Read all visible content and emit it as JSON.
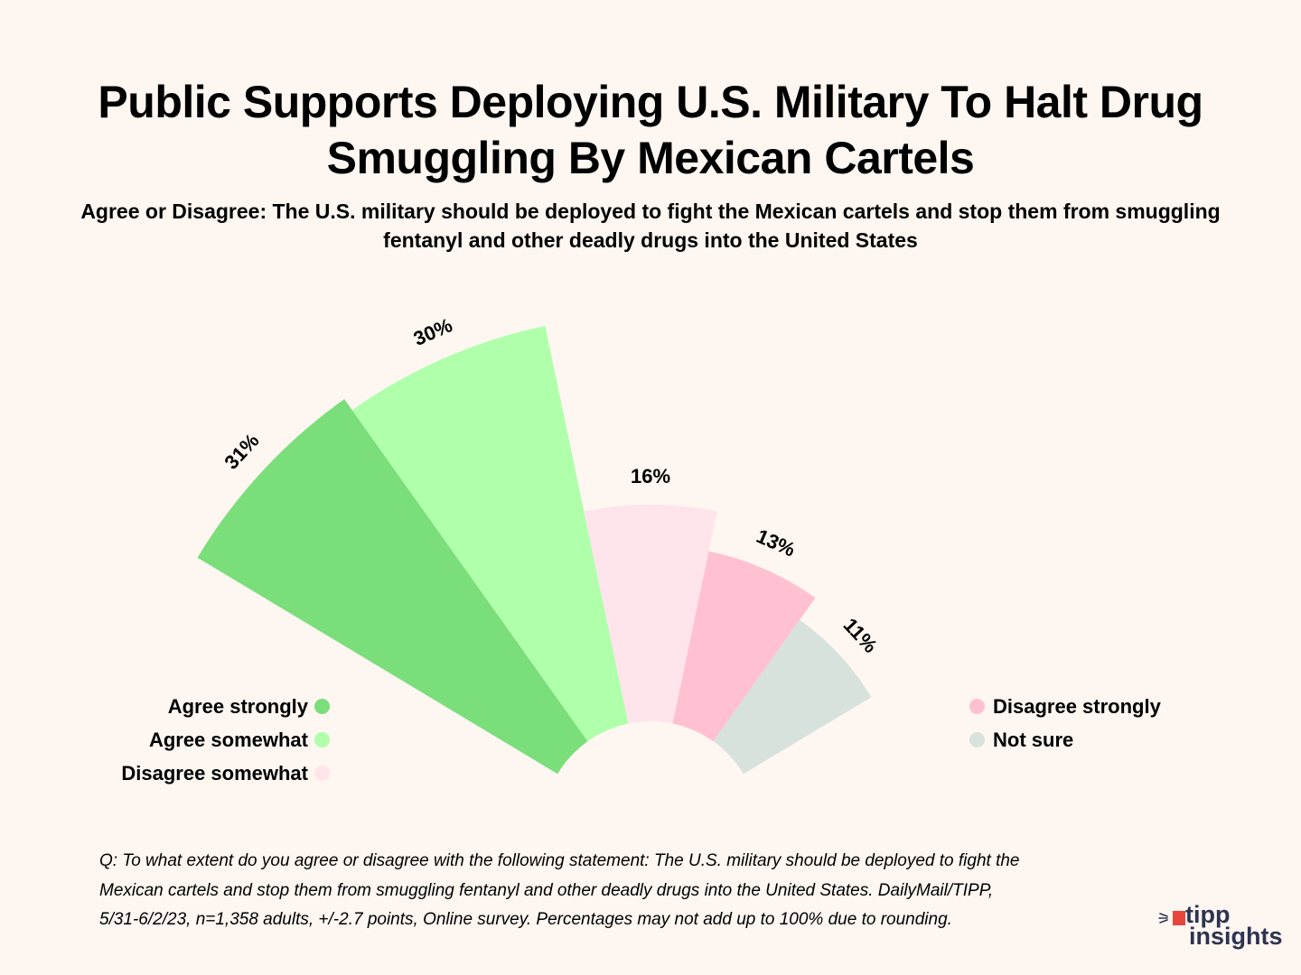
{
  "header": {
    "title": "Public Supports Deploying U.S. Military To Halt Drug Smuggling By Mexican Cartels",
    "subtitle": "Agree or Disagree: The U.S. military should be deployed to fight the Mexican cartels and stop them from smuggling fentanyl and other deadly drugs into the United States"
  },
  "chart_data": {
    "type": "pie",
    "subtype": "radial-bar (nightingale fan)",
    "title": "Public Supports Deploying U.S. Military To Halt Drug Smuggling By Mexican Cartels",
    "categories": [
      "Agree strongly",
      "Agree somewhat",
      "Disagree somewhat",
      "Disagree strongly",
      "Not sure"
    ],
    "values": [
      31,
      30,
      16,
      13,
      11
    ],
    "labels": [
      "31%",
      "30%",
      "16%",
      "13%",
      "11%"
    ],
    "colors": [
      "#7ade7a",
      "#b0ffab",
      "#ffe4ec",
      "#ffc1d1",
      "#d7e2dd"
    ],
    "unit": "%",
    "legend": {
      "left": [
        "Agree strongly",
        "Agree somewhat",
        "Disagree somewhat"
      ],
      "right": [
        "Disagree strongly",
        "Not sure"
      ]
    }
  },
  "footnote": {
    "lines": [
      "Q: To what extent do you agree or disagree with the following statement: The U.S. military should be deployed to fight the",
      "Mexican cartels and stop them from smuggling fentanyl and other deadly drugs into the United States. DailyMail/TIPP,",
      "5/31-6/2/23, n=1,358 adults, +/-2.7 points, Online survey. Percentages may not add up to 100% due to rounding."
    ]
  },
  "logo": {
    "line1": "tipp",
    "line2": "insights",
    "accent": "#e8463c",
    "text_color": "#2e3350"
  }
}
